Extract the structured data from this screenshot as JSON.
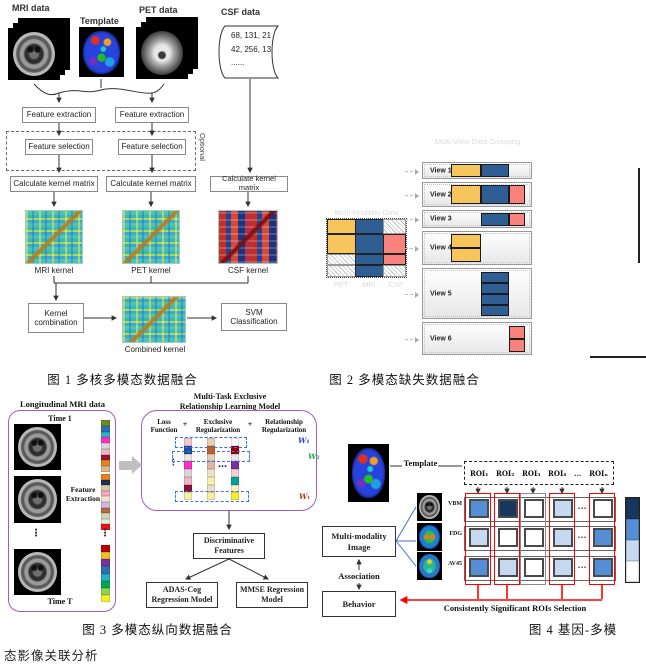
{
  "page": {
    "body_text": "态影像关联分析"
  },
  "fig1": {
    "caption": "图 1 多核多模态数据融合",
    "labels": {
      "mri": "MRI data",
      "template": "Template",
      "pet": "PET data",
      "csf": "CSF data"
    },
    "csf_values": [
      "68, 131, 21",
      "42, 256, 13",
      "......"
    ],
    "boxes": {
      "feature_extraction_1": "Feature extraction",
      "feature_extraction_2": "Feature extraction",
      "feature_selection_1": "Feature selection",
      "feature_selection_2": "Feature selection",
      "optional": "Optional",
      "calc_kernel_1": "Calculate kernel matrix",
      "calc_kernel_2": "Calculate kernel matrix",
      "calc_kernel_3": "Calculate kernel matrix",
      "kernel_combination": "Kernel combination",
      "svm": "SVM Classification"
    },
    "kernel_labels": {
      "mri": "MRI kernel",
      "pet": "PET kernel",
      "csf": "CSF kernel",
      "combined": "Combined kernel"
    }
  },
  "fig2": {
    "caption": "图 2 多模态缺失数据融合",
    "matrix_title": "Multi-Modality Data",
    "views_title": "Multi-View Data Grouping",
    "modalities": [
      "PET",
      "MRI",
      "CSF"
    ],
    "palette": {
      "yellow": "#F6C65C",
      "blue": "#2F5E94",
      "pink": "#F8837C"
    },
    "matrix_rows": [
      [
        "yellow",
        "blue",
        "missing"
      ],
      [
        "yellow",
        "blue",
        "pink"
      ],
      [
        "missing",
        "blue",
        "pink"
      ],
      [
        "missing",
        "blue",
        "missing"
      ]
    ],
    "views": [
      {
        "label": "View 1",
        "layout": "row",
        "blocks": [
          "yellow",
          "blue"
        ]
      },
      {
        "label": "View 2",
        "layout": "row",
        "blocks": [
          "yellow",
          "blue",
          "pink"
        ]
      },
      {
        "label": "View 3",
        "layout": "row",
        "blocks": [
          "blue",
          "pink"
        ]
      },
      {
        "label": "View 4",
        "layout": "stack",
        "blocks": [
          "yellow",
          "yellow"
        ]
      },
      {
        "label": "View 5",
        "layout": "stack",
        "blocks": [
          "blue",
          "blue",
          "blue",
          "blue"
        ]
      },
      {
        "label": "View 6",
        "layout": "stack",
        "blocks": [
          "pink",
          "pink"
        ]
      }
    ]
  },
  "fig3": {
    "caption": "图 3 多模态纵向数据融合",
    "left_title": "Longitudinal MRI data",
    "time_first": "Time 1",
    "time_last": "Time T",
    "feature_extraction": "Feature Extraction",
    "model_title": "Multi-Task Exclusive Relationship Learning Model",
    "terms": {
      "loss": "Loss Function",
      "plus1": "+",
      "exclusive": "Exclusive Regularization",
      "plus2": "+",
      "relationship": "Relationship Regularization"
    },
    "w_labels": [
      "W₁",
      "W₂",
      "Wₜ"
    ],
    "w_colors": [
      "#2b3fd6",
      "#1faa54",
      "#b23a2a"
    ],
    "vdots": "⋮",
    "hdots": "…",
    "strips": {
      "time1": [
        "#6d8a22",
        "#2f6db5",
        "#2ab6c0",
        "#ff2ec4",
        "#d8d8d8",
        "#f0b6c8",
        "#971430",
        "#e8821e",
        "#d8b890"
      ],
      "time2": [
        "#e8821e",
        "#1c2f55",
        "#d9c9a3",
        "#f5a9c5",
        "#efe0d0",
        "#cbb9ea",
        "#b86848",
        "#cfd8b0",
        "#e6e6e6",
        "#ee1111"
      ],
      "timeT": [
        "#c00000",
        "#f0c020",
        "#7a2fa0",
        "#2f6db5",
        "#28b0c8",
        "#00a84f",
        "#8fd24f",
        "#f5f02a"
      ],
      "model": [
        [
          "#f2c8d8",
          "#1f4e9e",
          "#efe8d8",
          "#ff2ec4",
          "#d8d8d8",
          "#f0b6c8",
          "#8f1030",
          "#f5f0a0"
        ],
        [
          "#e8d0b8",
          "#d06010",
          "#e8d0b8",
          "#e0b8a8",
          "#f0e0c8",
          "#f7f0b0",
          "#e8e0c8",
          "#f5ee9a"
        ],
        [
          "#ffffff",
          "#a00000",
          "#e8e8e8",
          "#7a2fa0",
          "#f0d0d0",
          "#00a0a0",
          "#f8f0b8",
          "#f5ee30"
        ]
      ]
    },
    "boxes": {
      "discriminative": "Discriminative Features",
      "adas": "ADAS-Cog Regression Model",
      "mmse": "MMSE Regression Model"
    }
  },
  "fig4": {
    "caption": "图 4 基因-多模",
    "template_label": "Template",
    "roi_labels": [
      "ROI₁",
      "ROI₂",
      "ROI₃",
      "ROI₄",
      "...",
      "ROIₙ"
    ],
    "row_labels": [
      "VBM",
      "FDG",
      "AV45"
    ],
    "grid": {
      "dots": "…",
      "cells": [
        [
          "mid",
          "dark",
          "white",
          "light",
          "white"
        ],
        [
          "light",
          "white",
          "white",
          "light",
          "mid"
        ],
        [
          "mid",
          "light",
          "white",
          "light",
          "mid"
        ]
      ],
      "red_cols": [
        0,
        1,
        3,
        4
      ],
      "gray_col": 2
    },
    "shade_palette": {
      "dark": "#17375E",
      "mid": "#558ED5",
      "light": "#C6D9F1",
      "white": "#FFFFFF"
    },
    "colorbar": [
      "dark",
      "mid",
      "light",
      "white"
    ],
    "boxes": {
      "mm": "Multi-modality Image",
      "behavior": "Behavior"
    },
    "association": "Association",
    "selection_label": "Consistently Significant ROIs Selection"
  }
}
